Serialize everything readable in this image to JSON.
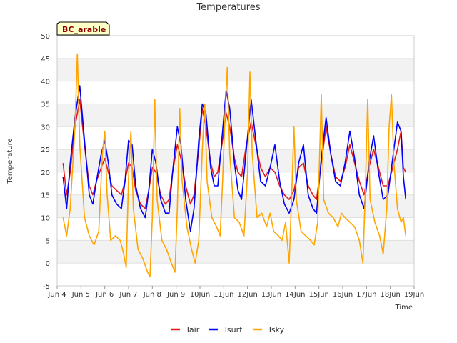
{
  "chart_data": {
    "type": "line",
    "title": "Temperatures",
    "xlabel": "Time",
    "ylabel": "Temperature",
    "site_label": "BC_arable",
    "xlim": [
      4,
      19
    ],
    "ylim": [
      -5,
      50
    ],
    "x_ticks": [
      {
        "value": 4,
        "label": "Jun 4"
      },
      {
        "value": 5,
        "label": "Jun 5"
      },
      {
        "value": 6,
        "label": "Jun 6"
      },
      {
        "value": 7,
        "label": "Jun 7"
      },
      {
        "value": 8,
        "label": "Jun 8"
      },
      {
        "value": 9,
        "label": "Jun 9"
      },
      {
        "value": 10,
        "label": "10Jun"
      },
      {
        "value": 11,
        "label": "11Jun"
      },
      {
        "value": 12,
        "label": "12Jun"
      },
      {
        "value": 13,
        "label": "13Jun"
      },
      {
        "value": 14,
        "label": "14Jun"
      },
      {
        "value": 15,
        "label": "15Jun"
      },
      {
        "value": 16,
        "label": "16Jun"
      },
      {
        "value": 17,
        "label": "17Jun"
      },
      {
        "value": 18,
        "label": "18Jun"
      },
      {
        "value": 19,
        "label": "19Jun"
      }
    ],
    "y_ticks": [
      -5,
      0,
      5,
      10,
      15,
      20,
      25,
      30,
      35,
      40,
      45,
      50
    ],
    "series": [
      {
        "name": "Tair",
        "color": "#e31a1c",
        "points": [
          [
            4.25,
            22
          ],
          [
            4.4,
            15
          ],
          [
            4.55,
            20
          ],
          [
            4.75,
            30
          ],
          [
            4.95,
            36
          ],
          [
            5.15,
            26
          ],
          [
            5.35,
            17
          ],
          [
            5.5,
            15
          ],
          [
            5.65,
            18
          ],
          [
            5.85,
            21
          ],
          [
            6.0,
            23
          ],
          [
            6.15,
            20
          ],
          [
            6.3,
            17
          ],
          [
            6.5,
            16
          ],
          [
            6.7,
            15
          ],
          [
            6.85,
            18
          ],
          [
            7.0,
            22
          ],
          [
            7.15,
            21
          ],
          [
            7.3,
            16
          ],
          [
            7.5,
            13
          ],
          [
            7.7,
            12
          ],
          [
            7.85,
            16
          ],
          [
            8.0,
            21
          ],
          [
            8.15,
            20
          ],
          [
            8.35,
            15
          ],
          [
            8.55,
            13
          ],
          [
            8.7,
            14
          ],
          [
            8.85,
            20
          ],
          [
            9.05,
            26
          ],
          [
            9.2,
            23
          ],
          [
            9.4,
            17
          ],
          [
            9.6,
            13
          ],
          [
            9.75,
            15
          ],
          [
            9.95,
            25
          ],
          [
            10.1,
            34
          ],
          [
            10.25,
            30
          ],
          [
            10.45,
            22
          ],
          [
            10.6,
            19
          ],
          [
            10.75,
            20
          ],
          [
            10.95,
            27
          ],
          [
            11.1,
            33
          ],
          [
            11.25,
            30
          ],
          [
            11.45,
            23
          ],
          [
            11.6,
            20
          ],
          [
            11.75,
            19
          ],
          [
            11.95,
            26
          ],
          [
            12.15,
            31
          ],
          [
            12.35,
            26
          ],
          [
            12.55,
            21
          ],
          [
            12.75,
            19
          ],
          [
            12.95,
            21
          ],
          [
            13.15,
            20
          ],
          [
            13.35,
            17
          ],
          [
            13.55,
            15
          ],
          [
            13.75,
            14
          ],
          [
            13.95,
            16
          ],
          [
            14.15,
            21
          ],
          [
            14.35,
            22
          ],
          [
            14.55,
            17
          ],
          [
            14.75,
            15
          ],
          [
            14.9,
            14
          ],
          [
            15.1,
            22
          ],
          [
            15.3,
            30
          ],
          [
            15.5,
            24
          ],
          [
            15.7,
            19
          ],
          [
            15.9,
            18
          ],
          [
            16.1,
            21
          ],
          [
            16.3,
            26
          ],
          [
            16.5,
            22
          ],
          [
            16.7,
            18
          ],
          [
            16.9,
            15
          ],
          [
            17.1,
            21
          ],
          [
            17.3,
            25
          ],
          [
            17.5,
            21
          ],
          [
            17.7,
            17
          ],
          [
            17.9,
            17
          ],
          [
            18.1,
            21
          ],
          [
            18.3,
            25
          ],
          [
            18.45,
            29
          ],
          [
            18.55,
            21
          ],
          [
            18.65,
            20
          ]
        ]
      },
      {
        "name": "Tsurf",
        "color": "#0000ff",
        "points": [
          [
            4.25,
            19
          ],
          [
            4.4,
            12
          ],
          [
            4.55,
            22
          ],
          [
            4.75,
            32
          ],
          [
            4.95,
            39
          ],
          [
            5.15,
            27
          ],
          [
            5.35,
            15
          ],
          [
            5.5,
            13
          ],
          [
            5.65,
            18
          ],
          [
            5.85,
            24
          ],
          [
            6.0,
            27
          ],
          [
            6.15,
            22
          ],
          [
            6.3,
            15
          ],
          [
            6.5,
            13
          ],
          [
            6.7,
            12
          ],
          [
            6.85,
            18
          ],
          [
            7.0,
            27
          ],
          [
            7.15,
            26
          ],
          [
            7.3,
            17
          ],
          [
            7.5,
            12
          ],
          [
            7.7,
            10
          ],
          [
            7.85,
            16
          ],
          [
            8.0,
            25
          ],
          [
            8.15,
            22
          ],
          [
            8.35,
            14
          ],
          [
            8.55,
            11
          ],
          [
            8.7,
            11
          ],
          [
            8.85,
            20
          ],
          [
            9.05,
            30
          ],
          [
            9.2,
            26
          ],
          [
            9.4,
            14
          ],
          [
            9.6,
            7
          ],
          [
            9.75,
            12
          ],
          [
            9.95,
            27
          ],
          [
            10.1,
            35
          ],
          [
            10.25,
            33
          ],
          [
            10.45,
            21
          ],
          [
            10.6,
            17
          ],
          [
            10.75,
            17
          ],
          [
            10.95,
            29
          ],
          [
            11.1,
            38
          ],
          [
            11.25,
            34
          ],
          [
            11.45,
            22
          ],
          [
            11.6,
            16
          ],
          [
            11.75,
            14
          ],
          [
            11.95,
            25
          ],
          [
            12.15,
            36
          ],
          [
            12.35,
            27
          ],
          [
            12.55,
            18
          ],
          [
            12.75,
            17
          ],
          [
            12.95,
            21
          ],
          [
            13.15,
            26
          ],
          [
            13.35,
            18
          ],
          [
            13.55,
            13
          ],
          [
            13.75,
            11
          ],
          [
            13.95,
            14
          ],
          [
            14.15,
            22
          ],
          [
            14.35,
            26
          ],
          [
            14.55,
            15
          ],
          [
            14.75,
            12
          ],
          [
            14.9,
            11
          ],
          [
            15.1,
            23
          ],
          [
            15.3,
            32
          ],
          [
            15.5,
            24
          ],
          [
            15.7,
            18
          ],
          [
            15.9,
            17
          ],
          [
            16.1,
            22
          ],
          [
            16.3,
            29
          ],
          [
            16.5,
            23
          ],
          [
            16.7,
            15
          ],
          [
            16.9,
            12
          ],
          [
            17.1,
            22
          ],
          [
            17.3,
            28
          ],
          [
            17.5,
            20
          ],
          [
            17.7,
            14
          ],
          [
            17.9,
            15
          ],
          [
            18.1,
            23
          ],
          [
            18.3,
            31
          ],
          [
            18.45,
            29
          ],
          [
            18.55,
            19
          ],
          [
            18.65,
            14
          ]
        ]
      },
      {
        "name": "Tsky",
        "color": "#ffa500",
        "points": [
          [
            4.25,
            10
          ],
          [
            4.4,
            6
          ],
          [
            4.55,
            12
          ],
          [
            4.75,
            30
          ],
          [
            4.85,
            46
          ],
          [
            4.95,
            26
          ],
          [
            5.15,
            10
          ],
          [
            5.35,
            6
          ],
          [
            5.55,
            4
          ],
          [
            5.75,
            7
          ],
          [
            5.9,
            24
          ],
          [
            6.0,
            29
          ],
          [
            6.1,
            15
          ],
          [
            6.25,
            5
          ],
          [
            6.45,
            6
          ],
          [
            6.65,
            5
          ],
          [
            6.8,
            2
          ],
          [
            6.9,
            -1
          ],
          [
            7.0,
            19
          ],
          [
            7.1,
            29
          ],
          [
            7.2,
            12
          ],
          [
            7.4,
            3
          ],
          [
            7.6,
            1
          ],
          [
            7.8,
            -2
          ],
          [
            7.9,
            -3
          ],
          [
            8.0,
            10
          ],
          [
            8.1,
            36
          ],
          [
            8.2,
            14
          ],
          [
            8.4,
            5
          ],
          [
            8.6,
            3
          ],
          [
            8.8,
            0
          ],
          [
            8.95,
            -2
          ],
          [
            9.05,
            12
          ],
          [
            9.15,
            34
          ],
          [
            9.25,
            18
          ],
          [
            9.45,
            8
          ],
          [
            9.65,
            3
          ],
          [
            9.8,
            0
          ],
          [
            9.95,
            5
          ],
          [
            10.1,
            25
          ],
          [
            10.2,
            35
          ],
          [
            10.3,
            18
          ],
          [
            10.5,
            10
          ],
          [
            10.7,
            8
          ],
          [
            10.85,
            6
          ],
          [
            10.95,
            18
          ],
          [
            11.05,
            32
          ],
          [
            11.15,
            43
          ],
          [
            11.25,
            24
          ],
          [
            11.45,
            10
          ],
          [
            11.65,
            9
          ],
          [
            11.85,
            6
          ],
          [
            12.0,
            20
          ],
          [
            12.1,
            42
          ],
          [
            12.2,
            24
          ],
          [
            12.4,
            10
          ],
          [
            12.6,
            11
          ],
          [
            12.8,
            8
          ],
          [
            12.95,
            11
          ],
          [
            13.1,
            7
          ],
          [
            13.3,
            6
          ],
          [
            13.45,
            5
          ],
          [
            13.6,
            9
          ],
          [
            13.75,
            0
          ],
          [
            13.85,
            14
          ],
          [
            13.95,
            30
          ],
          [
            14.05,
            14
          ],
          [
            14.25,
            7
          ],
          [
            14.45,
            6
          ],
          [
            14.65,
            5
          ],
          [
            14.8,
            4
          ],
          [
            14.95,
            9
          ],
          [
            15.1,
            37
          ],
          [
            15.2,
            14
          ],
          [
            15.4,
            11
          ],
          [
            15.6,
            10
          ],
          [
            15.8,
            8
          ],
          [
            15.95,
            11
          ],
          [
            16.1,
            10
          ],
          [
            16.3,
            9
          ],
          [
            16.5,
            8
          ],
          [
            16.7,
            5
          ],
          [
            16.85,
            0
          ],
          [
            16.95,
            16
          ],
          [
            17.05,
            36
          ],
          [
            17.15,
            14
          ],
          [
            17.35,
            9
          ],
          [
            17.55,
            6
          ],
          [
            17.7,
            2
          ],
          [
            17.85,
            12
          ],
          [
            17.95,
            30
          ],
          [
            18.05,
            37
          ],
          [
            18.15,
            22
          ],
          [
            18.3,
            12
          ],
          [
            18.45,
            9
          ],
          [
            18.55,
            10
          ],
          [
            18.65,
            6
          ]
        ]
      }
    ]
  }
}
